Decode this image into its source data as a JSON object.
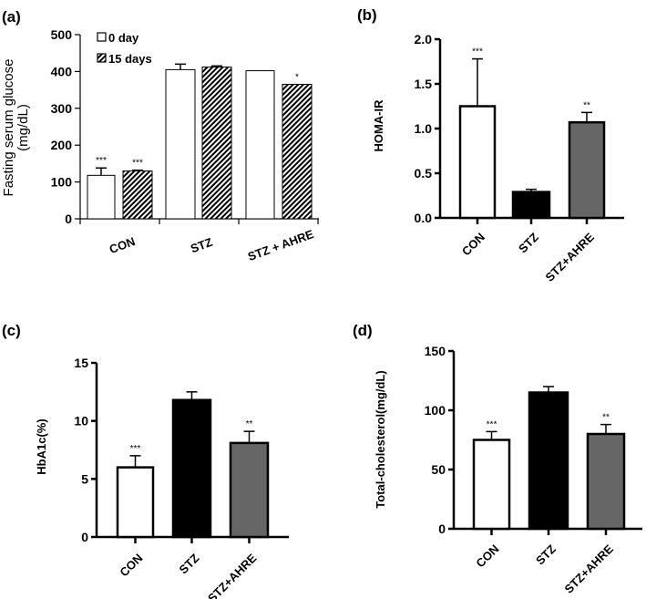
{
  "chart_data": [
    {
      "panel": "(a)",
      "type": "bar",
      "ylabel": "Fasting serum glucose (mg/dL)",
      "ylabel_lines": [
        "Fasting serum glucose",
        "(mg/dL)"
      ],
      "ylim": [
        0,
        500
      ],
      "yticks": [
        0,
        100,
        200,
        300,
        400,
        500
      ],
      "categories": [
        "CON",
        "STZ",
        "STZ + AHRE"
      ],
      "legend_position": "top-left",
      "series": [
        {
          "name": "0 day",
          "fill": "#ffffff",
          "pattern": "none",
          "values": [
            118,
            405,
            402
          ],
          "errors": [
            20,
            15,
            0
          ],
          "significance": [
            "***",
            "",
            ""
          ]
        },
        {
          "name": "15 days",
          "fill": "#000000",
          "pattern": "diagonal-hatch",
          "values": [
            130,
            412,
            365
          ],
          "errors": [
            2,
            3,
            0
          ],
          "significance": [
            "***",
            "",
            "*"
          ]
        }
      ]
    },
    {
      "panel": "(b)",
      "type": "bar",
      "ylabel": "HOMA-IR",
      "ylim": [
        0,
        2.0
      ],
      "yticks": [
        "0.0",
        "0.5",
        "1.0",
        "1.5",
        "2.0"
      ],
      "categories": [
        "CON",
        "STZ",
        "STZ+AHRE"
      ],
      "colors": [
        "#ffffff",
        "#000000",
        "#666666"
      ],
      "values": [
        1.25,
        0.29,
        1.07
      ],
      "errors": [
        0.53,
        0.03,
        0.11
      ],
      "significance": [
        "***",
        "",
        "**"
      ]
    },
    {
      "panel": "(c)",
      "type": "bar",
      "ylabel": "HbA1c(%)",
      "ylim": [
        0,
        15
      ],
      "yticks": [
        "0",
        "5",
        "10",
        "15"
      ],
      "categories": [
        "CON",
        "STZ",
        "STZ+AHRE"
      ],
      "colors": [
        "#ffffff",
        "#000000",
        "#666666"
      ],
      "values": [
        6.0,
        11.8,
        8.1
      ],
      "errors": [
        1.0,
        0.7,
        1.0
      ],
      "significance": [
        "***",
        "",
        "**"
      ]
    },
    {
      "panel": "(d)",
      "type": "bar",
      "ylabel": "Total-cholesterol(mg/dL)",
      "ylim": [
        0,
        150
      ],
      "yticks": [
        "0",
        "50",
        "100",
        "150"
      ],
      "categories": [
        "CON",
        "STZ",
        "STZ+AHRE"
      ],
      "colors": [
        "#ffffff",
        "#000000",
        "#666666"
      ],
      "values": [
        75,
        115,
        80
      ],
      "errors": [
        7,
        5,
        8
      ],
      "significance": [
        "***",
        "",
        "**"
      ]
    }
  ]
}
